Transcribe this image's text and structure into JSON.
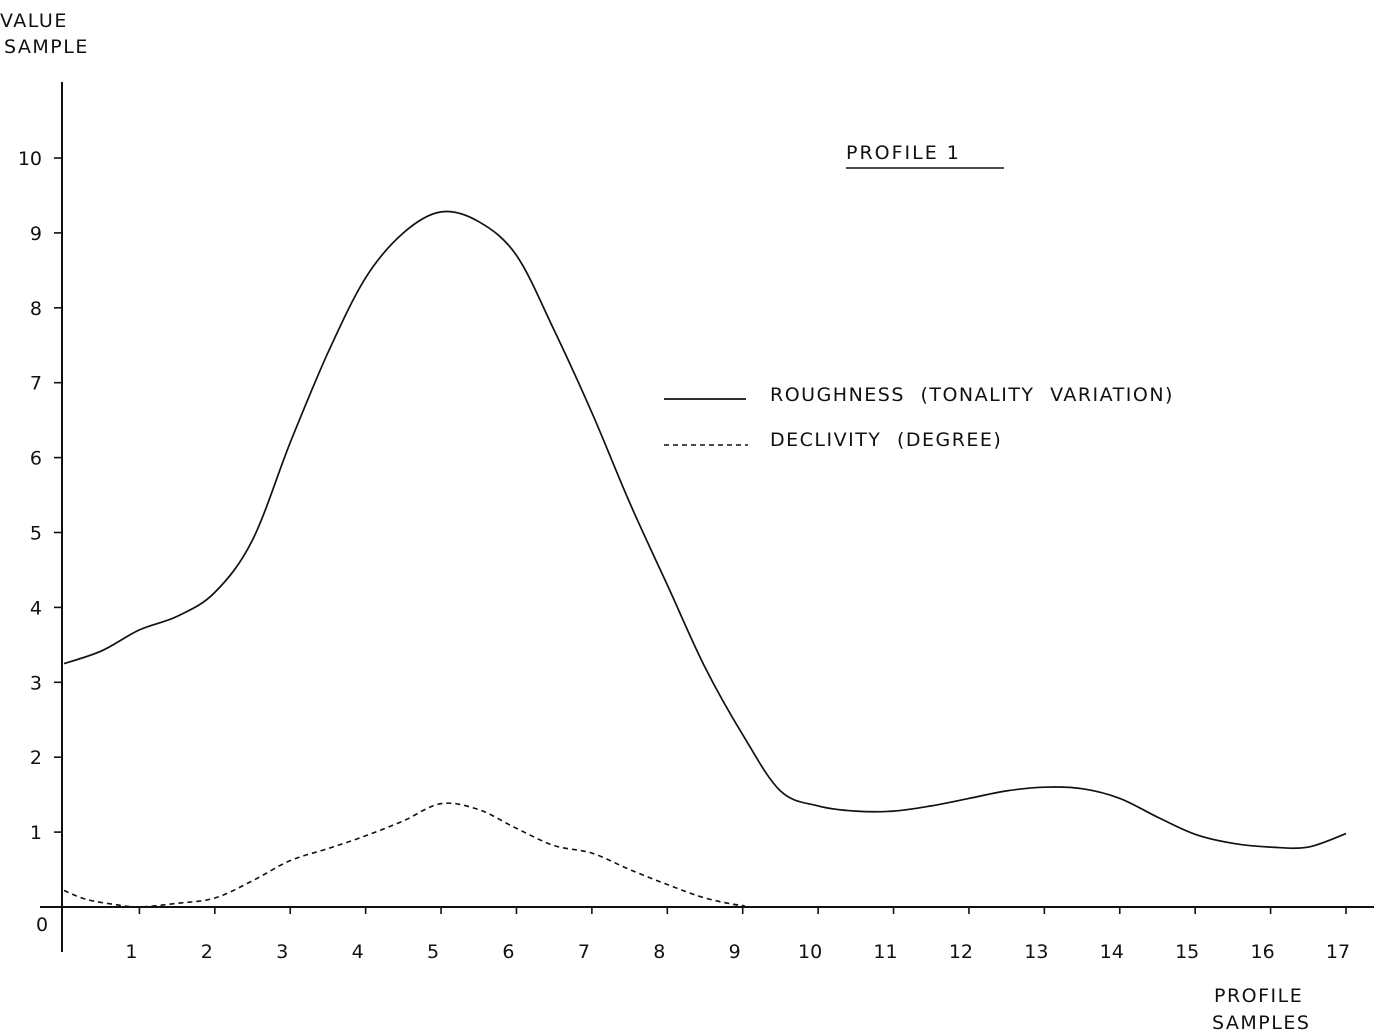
{
  "chart_data": {
    "type": "line",
    "title": "PROFILE 1",
    "ylabel_lines": [
      "VALUE",
      "SAMPLE"
    ],
    "xlabel_lines": [
      "PROFILE",
      "SAMPLES"
    ],
    "xlim": [
      0,
      17
    ],
    "ylim": [
      0,
      10
    ],
    "grid": false,
    "legend_position": "right",
    "x_ticks": [
      1,
      2,
      3,
      4,
      5,
      6,
      7,
      8,
      9,
      10,
      11,
      12,
      13,
      14,
      15,
      16,
      17
    ],
    "y_ticks": [
      1,
      2,
      3,
      4,
      5,
      6,
      7,
      8,
      9,
      10
    ],
    "origin_label": "0",
    "series": [
      {
        "name": "ROUGHNESS (TONALITY VARIATION)",
        "style": "solid",
        "x": [
          0,
          0.5,
          1,
          1.5,
          2,
          2.5,
          3,
          3.5,
          4,
          4.5,
          5,
          5.5,
          6,
          6.5,
          7,
          7.5,
          8,
          8.5,
          9,
          9.5,
          10,
          10.5,
          11,
          11.5,
          12,
          12.5,
          13,
          13.5,
          14,
          14.5,
          15,
          15.5,
          16,
          16.5,
          17
        ],
        "values": [
          3.25,
          3.42,
          3.7,
          3.88,
          4.2,
          4.9,
          6.2,
          7.4,
          8.4,
          9.0,
          9.28,
          9.15,
          8.7,
          7.7,
          6.6,
          5.4,
          4.3,
          3.2,
          2.3,
          1.55,
          1.35,
          1.28,
          1.28,
          1.35,
          1.45,
          1.55,
          1.6,
          1.58,
          1.45,
          1.2,
          0.97,
          0.85,
          0.8,
          0.8,
          0.98
        ]
      },
      {
        "name": "DECLIVITY (DEGREE)",
        "style": "dashed",
        "x": [
          0,
          0.3,
          0.7,
          1,
          1.5,
          2,
          2.5,
          3,
          3.5,
          4,
          4.5,
          5,
          5.5,
          6,
          6.5,
          7,
          7.5,
          8,
          8.5,
          9,
          9.5,
          17
        ],
        "values": [
          0.22,
          0.1,
          0.03,
          0.0,
          0.05,
          0.12,
          0.35,
          0.62,
          0.78,
          0.95,
          1.15,
          1.38,
          1.3,
          1.05,
          0.82,
          0.72,
          0.5,
          0.3,
          0.12,
          0.02,
          0.0,
          0.0
        ]
      }
    ]
  }
}
